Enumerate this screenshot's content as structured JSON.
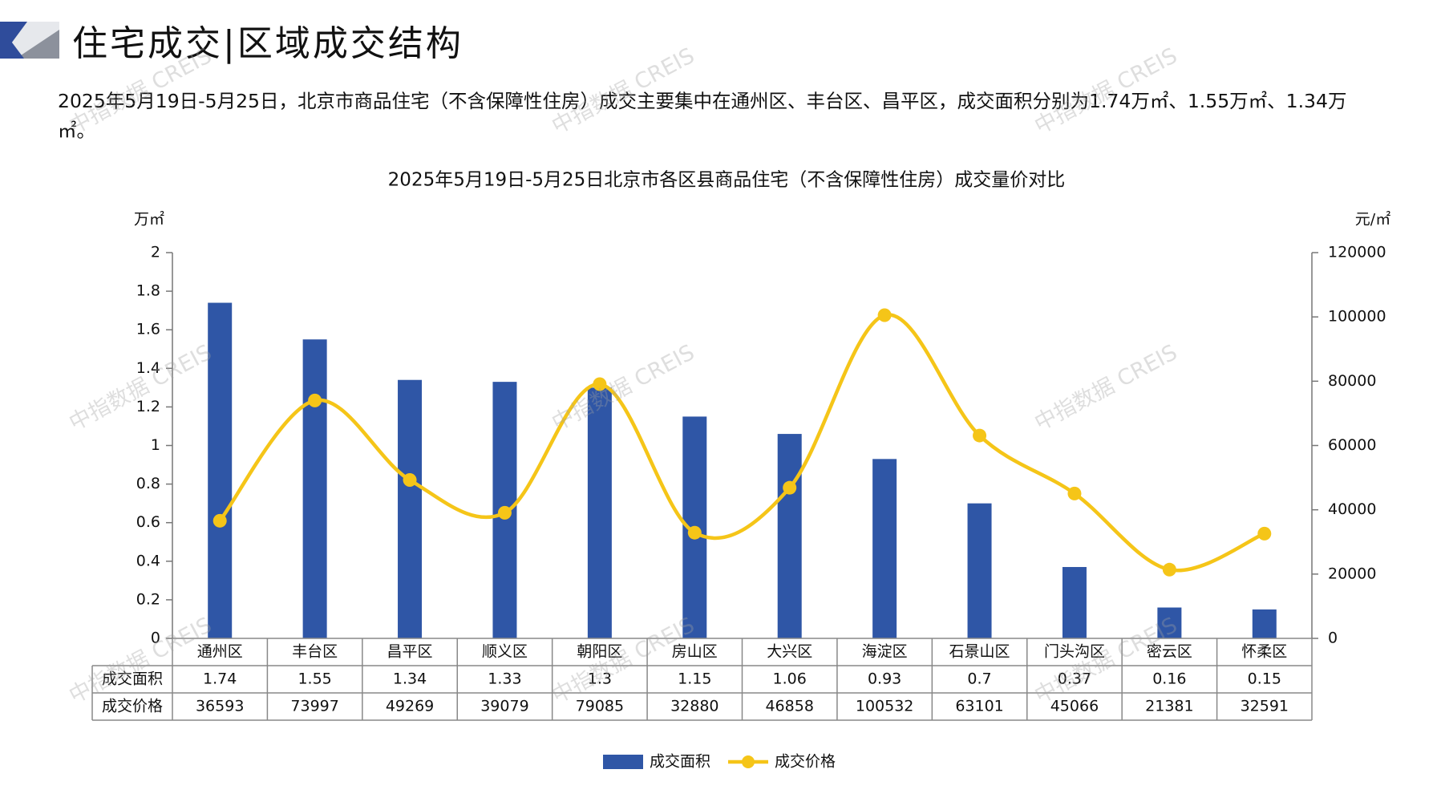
{
  "header": {
    "title": "住宅成交|区域成交结构",
    "logo_colors": [
      "#2F4C9B",
      "#D4D8E0",
      "#8C919C"
    ]
  },
  "intro_text": "2025年5月19日-5月25日，北京市商品住宅（不含保障性住房）成交主要集中在通州区、丰台区、昌平区，成交面积分别为1.74万㎡、1.55万㎡、1.34万㎡。",
  "watermark_text": "中指数据 CREIS",
  "chart_data": {
    "type": "bar",
    "title": "2025年5月19日-5月25日北京市各区县商品住宅（不含保障性住房）成交量价对比",
    "categories": [
      "通州区",
      "丰台区",
      "昌平区",
      "顺义区",
      "朝阳区",
      "房山区",
      "大兴区",
      "海淀区",
      "石景山区",
      "门头沟区",
      "密云区",
      "怀柔区"
    ],
    "y_left": {
      "unit": "万㎡",
      "ylim": [
        0,
        2
      ],
      "ticks": [
        "0",
        "0.2",
        "0.4",
        "0.6",
        "0.8",
        "1",
        "1.2",
        "1.4",
        "1.6",
        "1.8",
        "2"
      ]
    },
    "y_right": {
      "unit": "元/㎡",
      "ylim": [
        0,
        120000
      ],
      "ticks": [
        "0",
        "20000",
        "40000",
        "60000",
        "80000",
        "100000",
        "120000"
      ]
    },
    "series": [
      {
        "name": "成交面积",
        "type": "bar",
        "axis": "left",
        "color": "#2F56A6",
        "values": [
          1.74,
          1.55,
          1.34,
          1.33,
          1.3,
          1.15,
          1.06,
          0.93,
          0.7,
          0.37,
          0.16,
          0.15
        ],
        "labels": [
          "1.74",
          "1.55",
          "1.34",
          "1.33",
          "1.3",
          "1.15",
          "1.06",
          "0.93",
          "0.7",
          "0.37",
          "0.16",
          "0.15"
        ]
      },
      {
        "name": "成交价格",
        "type": "line",
        "axis": "right",
        "color": "#F5C518",
        "values": [
          36593,
          73997,
          49269,
          39079,
          79085,
          32880,
          46858,
          100532,
          63101,
          45066,
          21381,
          32591
        ],
        "labels": [
          "36593",
          "73997",
          "49269",
          "39079",
          "79085",
          "32880",
          "46858",
          "100532",
          "63101",
          "45066",
          "21381",
          "32591"
        ]
      }
    ],
    "grid": false,
    "legend": "bottom-center"
  }
}
